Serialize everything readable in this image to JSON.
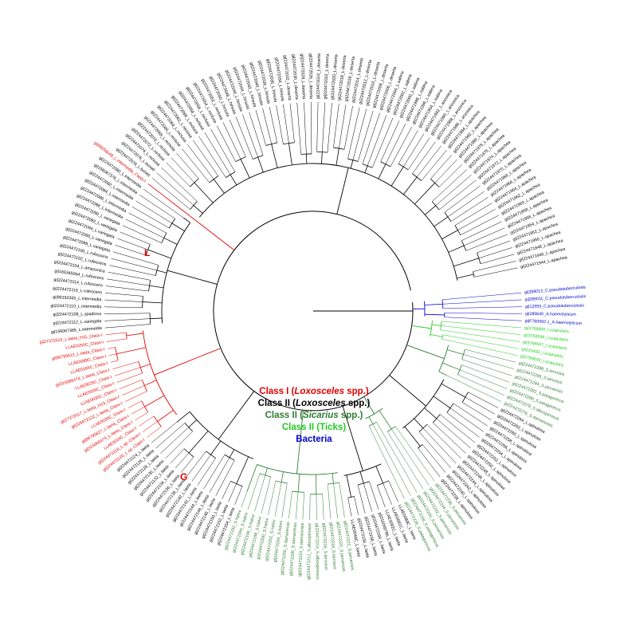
{
  "colors": {
    "class_i": "#e00000",
    "class_ii_loxosceles": "#000000",
    "class_ii_sicarius": "#2f7d32",
    "class_ii_ticks": "#22cc22",
    "bacteria": "#0000cc"
  },
  "legend": {
    "class_i_prefix": "Class I (",
    "class_i_genus": "Loxosceles",
    "class_i_suffix": " spp.)",
    "class_ii_lox_prefix": "Class II (",
    "class_ii_lox_genus": "Loxosceles",
    "class_ii_lox_suffix": " spp.)",
    "class_ii_sic_prefix": "Class II (",
    "class_ii_sic_genus": "Sicarius",
    "class_ii_sic_suffix": " spp.)",
    "class_ii_ticks": "Class II (Ticks)",
    "bacteria": "Bacteria"
  },
  "clade_markers": {
    "L": "L",
    "G": "G"
  },
  "tree": {
    "groups": [
      {
        "color": "bacteria",
        "labels": [
          "gi|289013_C.pseudotuberculosis",
          "gi|289011_C.pseudotuberculosis",
          "gi|12559_C.pseudotuberculosis",
          "gi|280640_A.haemolyticum",
          "gi|F760592.1_A.haemolyticum"
        ]
      },
      {
        "color": "class_ii_ticks",
        "labels": [
          "gi|3768800_I.scapularis",
          "gi|3768599_I.scapularis",
          "gi|3768597_I.scapularis",
          "gi|215493_I.scapularis",
          "gi|3768600_I.scapularis"
        ]
      },
      {
        "color": "class_ii_sicarius",
        "labels": [
          "gi|224472288_S.terrosus",
          "gi|224472286_S.terrosus",
          "gi|224472284_S.peruensis",
          "gi|224472282_S.patagonicus",
          "gi|224472280_S.patagonicus",
          "gi|224472278_S.albospinosus",
          "gi|224472276_S.damarensis"
        ]
      },
      {
        "color": "class_ii_loxosceles",
        "labels": [
          "gi|224472264_L.spinulosa",
          "gi|224472262_L.spinulosa",
          "gi|224472260_L.spinulosa",
          "gi|224472258_L.spinulosa",
          "gi|224472256_L.spinulosa",
          "gi|224472254_L.spinulosa",
          "gi|224472252_L.spinulosa",
          "gi|224472250_L.spinulosa",
          "gi|224472248_L.spinulosa",
          "gi|224472246_L.spinulosa",
          "gi|224472244_L.spinulosa",
          "gi|224472242_L.spinulosa",
          "gi|224472240_L.spinulosa",
          "gi|224472238_L.spinulosa"
        ]
      },
      {
        "color": "class_ii_sicarius",
        "labels": [
          "gi|224472236_S.peruensis",
          "gi|224472234_S.peruensis",
          "gi|224472232_S.peruensis",
          "gi|224472230_S.peruensis",
          "gi|224472228_S.patagonicus",
          "gi|224472226_S.patagonicus"
        ]
      },
      {
        "color": "class_ii_loxosceles",
        "labels": [
          "LLAE0089C_L.laeta",
          "LLAE0091C_L.laeta",
          "LLAE0092C_L.laeta",
          "gi|311069786_L.laeta",
          "gi|224472160_L.laeta",
          "gi|224472158_L.laeta",
          "gi|224472156_L.laeta",
          "LLAE0049C_L.laeta"
        ]
      },
      {
        "color": "class_ii_sicarius",
        "labels": [
          "gi|224472222_S.peruensis",
          "gi|224472220_S.peruensis",
          "gi|224472218_S.terrosus",
          "gi|224472216_S.terrosus",
          "gi|224472214_S.albospinosus",
          "gi|224472212_S.albospinosus",
          "gi|224472210_S.damarensis",
          "gi|224472208_S.damarensis",
          "gi|224472206_S.damarensis",
          "gi|224472204_S.hahni",
          "gi|224472202_S.hahni",
          "gi|224472200_S.hahni",
          "gi|224472198_S.hahni",
          "gi|224472196_S.hahni",
          "gi|224472194_S.hahni",
          "gi|224472192_S.hahni"
        ]
      },
      {
        "color": "class_ii_loxosceles",
        "labels": [
          "gi|224472154_L.laeta",
          "gi|224472152_L.laeta",
          "gi|224472150_L.laeta",
          "gi|224472148_L.laeta",
          "gi|224472146_L.laeta",
          "gi|224472144_L.laeta",
          "gi|224472142_L.laeta",
          "gi|224472140_L.laeta",
          "gi|224472138_L.laeta",
          "gi|224472136_L.laeta",
          "gi|224472134_L.laeta",
          "gi|224472132_L.laeta",
          "gi|224472130_L.laeta",
          "gi|224472128_L.laeta",
          "gi|224472126_L.laeta",
          "gi|224472124_L.laeta"
        ]
      },
      {
        "color": "class_i",
        "labels": [
          "gi|224472120_L.sp.-Class-I",
          "gi|224472118_L.sp.-Class-I",
          "LLAE0034C_Class-I",
          "gi|315066474_L.laeta_Class-I",
          "gi|86795627_L.laeta_Class-I",
          "LLAE0030C_Class-I",
          "gi|224472122_L.laeta_Class-I",
          "gi|27372517_L.laeta_H13_Class-I",
          "LLAE0035C_Class-I",
          "LLAE0026C_Class-I",
          "LLAE0025C_Class-I",
          "gi|315066474_L.laeta_Class-I",
          "LLAE0165C_Class-I",
          "LLAE0089C_Class-I",
          "gi|86795613_L.laeta_Class-I",
          "LLAE0250C_Class-I",
          "gi|27372515_L.laeta_H11_Class-I"
        ]
      },
      {
        "color": "class_ii_loxosceles",
        "labels": [
          "gi|156067385_L.intermedia",
          "gi|224472112_L.variegata",
          "gi|224472108_L.spadicea",
          "gi|224472110_L.intermedia",
          "gi|90192355_L.intermedia",
          "gi|224472116_L.rufescens",
          "gi|224472114_L.rufescens",
          "gi|165345064_L.rufescens",
          "gi|224472104_L.amazonica",
          "gi|224472102_L.rufescens",
          "gi|224472100_L.rufescens",
          "gi|224472098_L.variegata",
          "gi|224472096_L.variegata",
          "gi|224472094_L.variegata",
          "gi|224472092_L.variegata",
          "gi|224472090_L.variegata",
          "gi|224472088_L.intermedia",
          "gi|224472086_L.intermedia",
          "gi|224472084_L.intermedia",
          "gi|224472082_L.intermedia",
          "gi|156067378_L.intermedia",
          "gi|224472080_L.intermedia"
        ]
      },
      {
        "color": "class_i",
        "labels": [
          "gi|99256048_L.intermedia_Class-I"
        ]
      },
      {
        "color": "class_ii_loxosceles",
        "labels": [
          "gi|224472078_L.boneti",
          "gi|224472076_L.boneti",
          "gi|224472074_L.reclusa",
          "gi|224472072_L.reclusa",
          "gi|224472070_L.reclusa",
          "gi|224472068_L.reclusa",
          "gi|224472066_L.reclusa",
          "gi|224472064_L.reclusa",
          "gi|224472062_L.reclusa",
          "gi|224472060_L.reclusa",
          "gi|224472058_L.reclusa",
          "gi|224472056_L.reclusa",
          "gi|224472054_L.reclusa",
          "gi|224472052_L.reclusa",
          "gi|224472050_L.hirsuta",
          "gi|224472048_L.hirsuta",
          "gi|224472046_L.hirsuta",
          "gi|224472044_L.hirsuta",
          "gi|224472042_L.hirsuta",
          "gi|224472040_L.hirsuta",
          "gi|224472038_L.hirsuta",
          "gi|224472036_L.hirsuta",
          "gi|224472034_L.hirsuta",
          "gi|224472032_L.deserta",
          "gi|224472030_L.deserta",
          "gi|224472028_L.deserta",
          "gi|224472026_L.deserta",
          "gi|224472024_L.deserta",
          "gi|224472022_L.deserta",
          "gi|224472020_L.deserta",
          "gi|224472018_L.deserta",
          "gi|224472016_L.deserta",
          "gi|224472014_L.deserta",
          "gi|224472012_L.deserta",
          "gi|224472010_L.deserta",
          "gi|224472008_L.deserta",
          "gi|224472006_L.deserta",
          "gi|224472004_L.sabina",
          "gi|224472002_L.sabina",
          "gi|224472000_L.sabina",
          "gi|224471998_L.sabina",
          "gi|224471996_L.sabina",
          "gi|224471994_L.sabina",
          "gi|224471992_L.arizonica",
          "gi|224471990_L.arizonica",
          "gi|224471988_L.arizonica",
          "gi|224471986_L.arizonica",
          "gi|224471984_L.apachea",
          "gi|224471982_L.apachea",
          "gi|224471980_L.apachea",
          "gi|224471978_L.apachea",
          "gi|224471976_L.apachea",
          "gi|224471974_L.apachea",
          "gi|224471972_L.apachea",
          "gi|224471970_L.apachea",
          "gi|224471968_L.apachea",
          "gi|224471966_L.apachea",
          "gi|224471964_L.apachea",
          "gi|224471962_L.apachea",
          "gi|224471960_L.apachea",
          "gi|224471958_L.apachea",
          "gi|224471956_L.apachea",
          "gi|224471954_L.apachea",
          "gi|224471952_L.apachea",
          "gi|224471950_L.apachea",
          "gi|224471948_L.apachea",
          "gi|224471946_L.apachea",
          "gi|224471944_L.apachea"
        ]
      }
    ]
  }
}
